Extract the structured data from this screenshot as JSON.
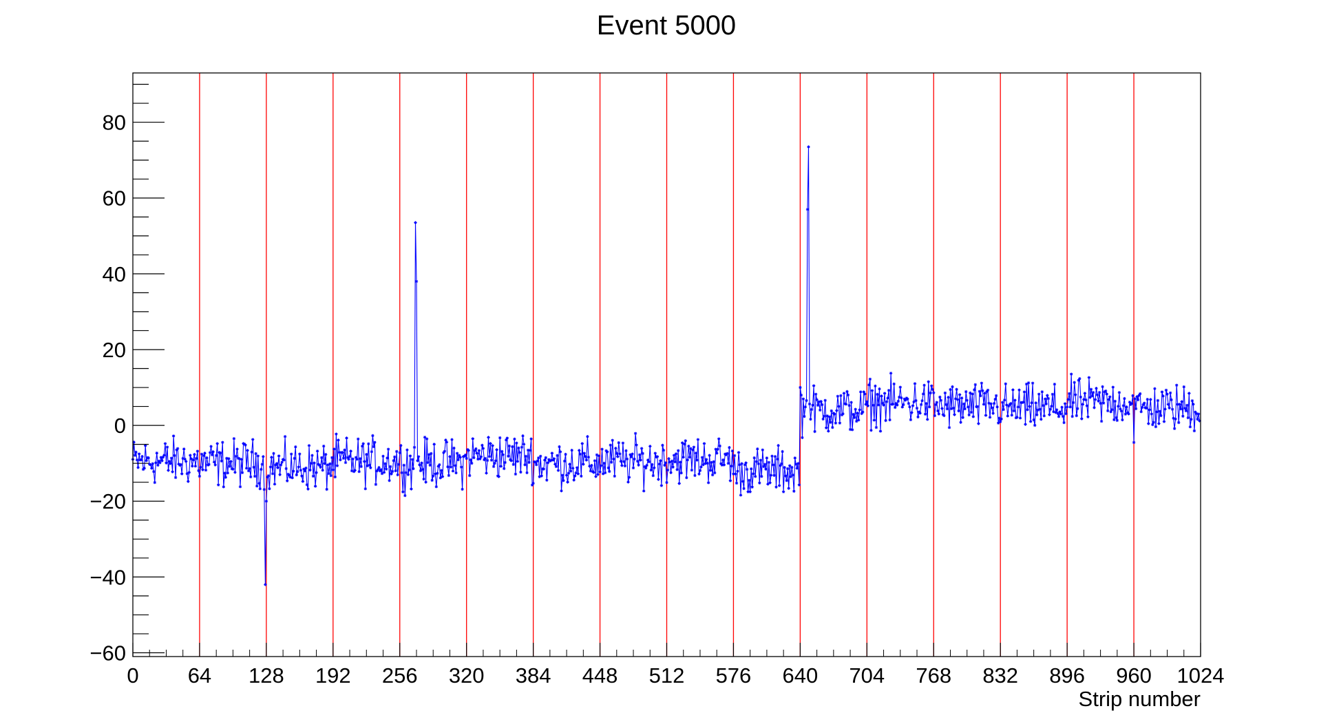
{
  "chart_data": {
    "type": "line",
    "title": "Event 5000",
    "xlabel": "Strip number",
    "ylabel": "",
    "xlim": [
      0,
      1024
    ],
    "ylim": [
      -61,
      93
    ],
    "x_ticks": [
      0,
      64,
      128,
      192,
      256,
      320,
      384,
      448,
      512,
      576,
      640,
      704,
      768,
      832,
      896,
      960,
      1024
    ],
    "x_tick_labels": [
      "0",
      "64",
      "128",
      "192",
      "256",
      "320",
      "384",
      "448",
      "512",
      "576",
      "640",
      "704",
      "768",
      "832",
      "896",
      "960",
      "1024"
    ],
    "y_ticks": [
      -60,
      -40,
      -20,
      0,
      20,
      40,
      60,
      80
    ],
    "y_tick_labels": [
      "−60",
      "−40",
      "−20",
      "0",
      "20",
      "40",
      "60",
      "80"
    ],
    "grid": false,
    "legend": "none",
    "boundary_lines": [
      64,
      128,
      192,
      256,
      320,
      384,
      448,
      512,
      576,
      640,
      704,
      768,
      832,
      896,
      960
    ],
    "series": [
      {
        "color": "#0000ff",
        "marker": "star",
        "baseline_segments": [
          {
            "from": 0,
            "to": 64,
            "level": -9.5
          },
          {
            "from": 64,
            "to": 128,
            "level": -10
          },
          {
            "from": 128,
            "to": 192,
            "level": -11
          },
          {
            "from": 192,
            "to": 256,
            "level": -9.5
          },
          {
            "from": 256,
            "to": 320,
            "level": -10
          },
          {
            "from": 320,
            "to": 384,
            "level": -8
          },
          {
            "from": 384,
            "to": 448,
            "level": -10
          },
          {
            "from": 448,
            "to": 512,
            "level": -9.5
          },
          {
            "from": 512,
            "to": 576,
            "level": -9
          },
          {
            "from": 576,
            "to": 640,
            "level": -12
          },
          {
            "from": 640,
            "to": 704,
            "level": 4
          },
          {
            "from": 704,
            "to": 768,
            "level": 6
          },
          {
            "from": 768,
            "to": 832,
            "level": 5
          },
          {
            "from": 832,
            "to": 896,
            "level": 4.5
          },
          {
            "from": 896,
            "to": 960,
            "level": 6
          },
          {
            "from": 960,
            "to": 1024,
            "level": 4.5
          }
        ],
        "noise_amplitude": 3,
        "peaks": [
          {
            "x": 127,
            "y": -42
          },
          {
            "x": 128,
            "y": -20
          },
          {
            "x": 271,
            "y": 53.5
          },
          {
            "x": 272,
            "y": 38
          },
          {
            "x": 640,
            "y": 10
          },
          {
            "x": 647,
            "y": 57
          },
          {
            "x": 648,
            "y": 73.5
          },
          {
            "x": 960,
            "y": -4.5
          }
        ]
      }
    ]
  }
}
